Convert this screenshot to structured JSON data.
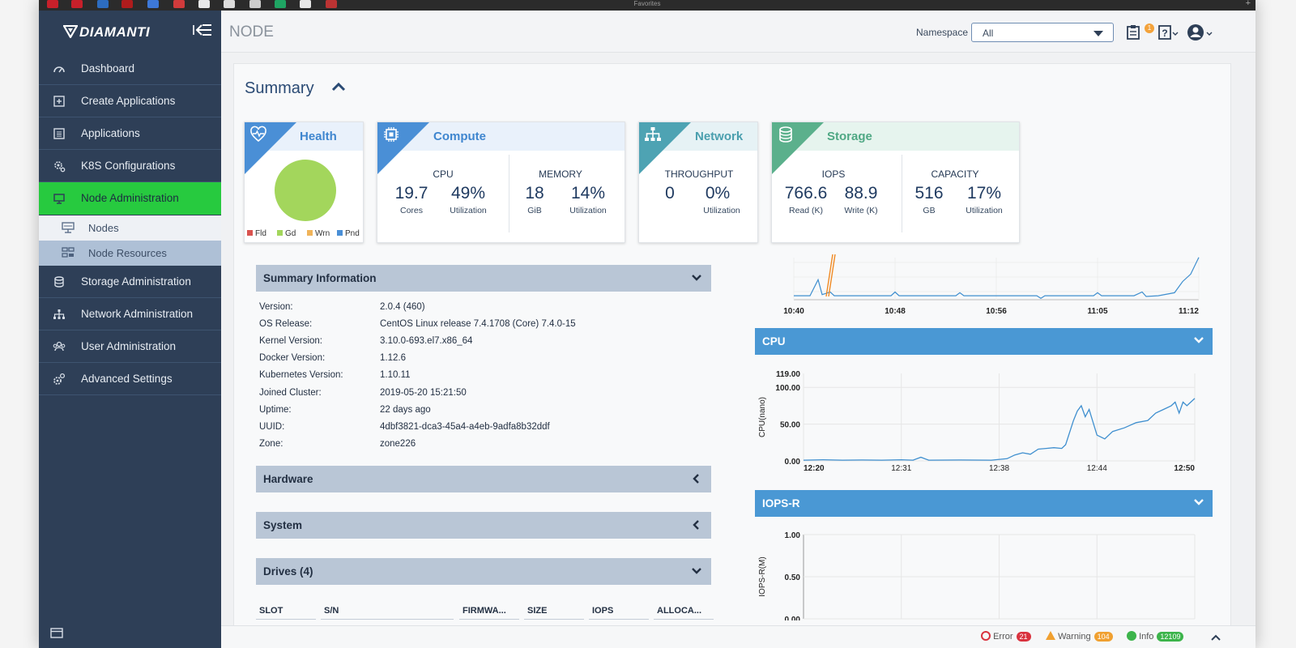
{
  "favorites_bar": {
    "label": "Favorites",
    "add": "+"
  },
  "brand": {
    "name": "DIAMANTI"
  },
  "sidebar": {
    "items": [
      {
        "label": "Dashboard",
        "icon": "gauge-icon"
      },
      {
        "label": "Create Applications",
        "icon": "plus-square-icon"
      },
      {
        "label": "Applications",
        "icon": "list-icon"
      },
      {
        "label": "K8S Configurations",
        "icon": "gears-icon"
      },
      {
        "label": "Node Administration",
        "icon": "monitor-icon",
        "active": true
      },
      {
        "label": "Storage Administration",
        "icon": "database-icon"
      },
      {
        "label": "Network Administration",
        "icon": "sitemap-icon"
      },
      {
        "label": "User Administration",
        "icon": "users-icon"
      },
      {
        "label": "Advanced Settings",
        "icon": "cog-icon"
      }
    ],
    "subitems": [
      {
        "label": "Nodes",
        "icon": "node-icon"
      },
      {
        "label": "Node Resources",
        "icon": "resources-icon"
      }
    ]
  },
  "header": {
    "title": "NODE",
    "namespace_label": "Namespace",
    "namespace_value": "All",
    "notification_count": "1"
  },
  "summary": {
    "title": "Summary",
    "health": {
      "title": "Health",
      "legend": [
        "Fld",
        "Gd",
        "Wrn",
        "Pnd"
      ]
    },
    "compute": {
      "title": "Compute",
      "cpu_label": "CPU",
      "cores": "19.7",
      "cores_unit": "Cores",
      "cpu_util": "49%",
      "cpu_util_unit": "Utilization",
      "memory_label": "MEMORY",
      "mem": "18",
      "mem_unit": "GiB",
      "mem_util": "14%",
      "mem_util_unit": "Utilization"
    },
    "network": {
      "title": "Network",
      "throughput_label": "THROUGHPUT",
      "throughput": "0",
      "util": "0%",
      "util_unit": "Utilization"
    },
    "storage": {
      "title": "Storage",
      "iops_label": "IOPS",
      "read": "766.6",
      "read_unit": "Read (K)",
      "write": "88.9",
      "write_unit": "Write (K)",
      "capacity_label": "CAPACITY",
      "cap": "516",
      "cap_unit": "GB",
      "cap_util": "17%",
      "cap_util_unit": "Utilization"
    }
  },
  "summary_info": {
    "title": "Summary Information",
    "rows": [
      {
        "key": "Version:",
        "value": "2.0.4 (460)"
      },
      {
        "key": "OS Release:",
        "value": "CentOS Linux release 7.4.1708 (Core) 7.4.0-15"
      },
      {
        "key": "Kernel Version:",
        "value": "3.10.0-693.el7.x86_64"
      },
      {
        "key": "Docker Version:",
        "value": "1.12.6"
      },
      {
        "key": "Kubernetes Version:",
        "value": "1.10.11"
      },
      {
        "key": "Joined Cluster:",
        "value": "2019-05-20 15:21:50"
      },
      {
        "key": "Uptime:",
        "value": "22 days ago"
      },
      {
        "key": "UUID:",
        "value": "4dbf3821-dca3-45a4-a4eb-9adfa8b32ddf"
      },
      {
        "key": "Zone:",
        "value": "zone226"
      }
    ]
  },
  "sections": {
    "hardware": "Hardware",
    "system": "System",
    "drives": "Drives (4)"
  },
  "drives_table": {
    "columns": [
      "SLOT",
      "S/N",
      "FIRMWA...",
      "SIZE",
      "IOPS",
      "ALLOCA..."
    ]
  },
  "top_chart": {
    "x_ticks": [
      "10:40",
      "10:48",
      "10:56",
      "11:05",
      "11:12"
    ]
  },
  "cpu_panel": {
    "title": "CPU",
    "ylabel": "CPU(nano)",
    "y_ticks": [
      "119.00",
      "100.00",
      "50.00",
      "0.00"
    ],
    "x_ticks": [
      "12:20",
      "12:31",
      "12:38",
      "12:44",
      "12:50"
    ]
  },
  "iops_panel": {
    "title": "IOPS-R",
    "ylabel": "IOPS-R(M)",
    "y_ticks": [
      "1.00",
      "0.50",
      "0.00"
    ]
  },
  "footer": {
    "error_label": "Error",
    "error_count": "21",
    "warning_label": "Warning",
    "warning_count": "104",
    "info_label": "Info",
    "info_count": "12109"
  },
  "chart_data": [
    {
      "type": "line",
      "title": "",
      "xlabel": "",
      "ylabel": "",
      "x": [
        "10:40",
        "10:48",
        "10:56",
        "11:05",
        "11:12"
      ],
      "series": [
        {
          "values": [
            0,
            0.05,
            0.02,
            0.03,
            1.0
          ],
          "color": "#3f8fcf"
        }
      ]
    },
    {
      "type": "line",
      "title": "CPU",
      "ylabel": "CPU(nano)",
      "ylim": [
        0,
        119
      ],
      "x": [
        "12:20",
        "12:24",
        "12:28",
        "12:31",
        "12:34",
        "12:36",
        "12:38",
        "12:39",
        "12:41",
        "12:42",
        "12:43",
        "12:44",
        "12:46",
        "12:48",
        "12:50"
      ],
      "series": [
        {
          "values": [
            1,
            1,
            1,
            2,
            1,
            1,
            3,
            10,
            18,
            20,
            78,
            35,
            50,
            65,
            85
          ],
          "color": "#3f8fcf"
        }
      ]
    },
    {
      "type": "line",
      "title": "IOPS-R",
      "ylabel": "IOPS-R(M)",
      "ylim": [
        0,
        1
      ],
      "x": [],
      "series": []
    }
  ]
}
